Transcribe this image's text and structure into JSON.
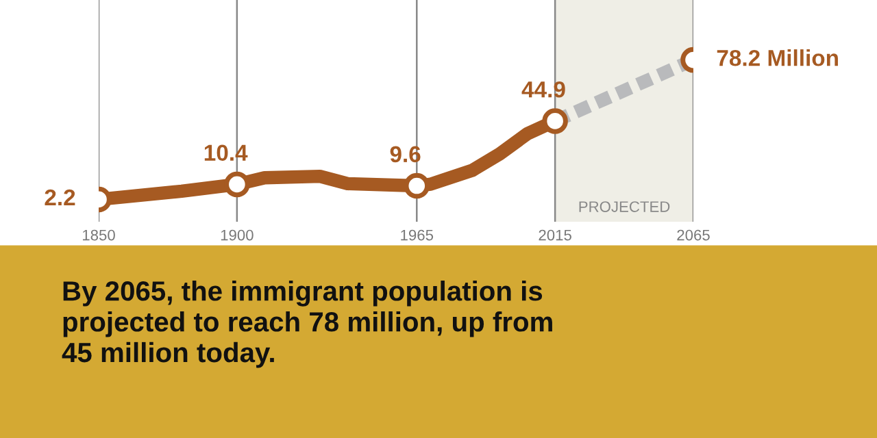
{
  "chart_data": {
    "type": "line",
    "x": [
      1850,
      1880,
      1900,
      1910,
      1930,
      1940,
      1965,
      1970,
      1985,
      1995,
      2005,
      2015
    ],
    "series": [
      {
        "color": "#a65a22",
        "values": [
          2.2,
          6.7,
          10.4,
          14,
          14.8,
          10.8,
          9.6,
          10.5,
          18,
          27,
          38,
          44.9
        ],
        "value_labels": [
          "2.2",
          null,
          "10.4",
          null,
          null,
          null,
          "9.6",
          null,
          null,
          null,
          null,
          "44.9"
        ]
      },
      {
        "color": "#b9babc",
        "x": [
          2015,
          2065
        ],
        "values": [
          44.9,
          78.2
        ],
        "value_labels": [
          null,
          "78.2 Million"
        ],
        "line_style": "dashed"
      }
    ],
    "xlim": [
      1850,
      2065
    ],
    "xticks": [
      1850,
      1900,
      1965,
      2015,
      2065
    ],
    "tick_labels": "x",
    "grid": "x",
    "legend": false,
    "bands": [
      {
        "axis": "x",
        "from": 2015,
        "to": 2065,
        "label": "PROJECTED",
        "color": "#efeee6"
      }
    ],
    "annotations": [
      "By 2065, the immigrant population is\nprojected to reach 78 million, up from\n45 million today."
    ]
  }
}
